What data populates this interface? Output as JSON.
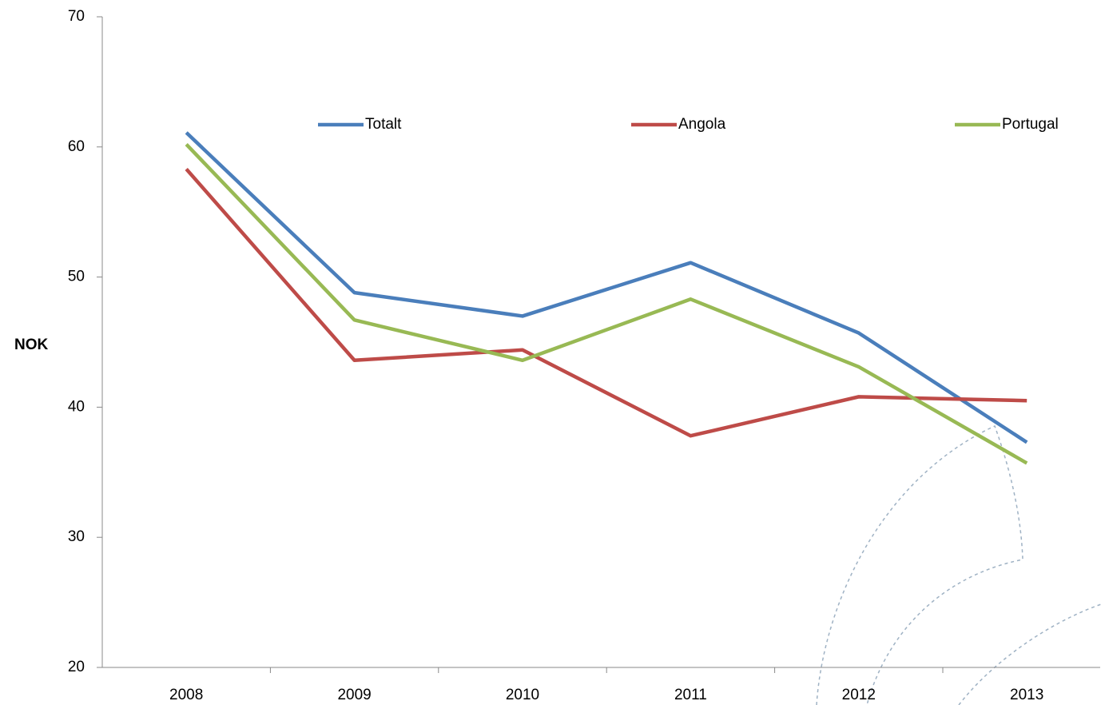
{
  "chart_data": {
    "type": "line",
    "y_label": "NOK",
    "categories": [
      "2008",
      "2009",
      "2010",
      "2011",
      "2012",
      "2013"
    ],
    "series": [
      {
        "name": "Totalt",
        "color": "#4a7ebb",
        "values": [
          61.1,
          48.8,
          47.0,
          51.1,
          45.7,
          37.3
        ]
      },
      {
        "name": "Angola",
        "color": "#be4b48",
        "values": [
          58.3,
          43.6,
          44.4,
          37.8,
          40.8,
          40.5
        ]
      },
      {
        "name": "Portugal",
        "color": "#98b954",
        "values": [
          60.2,
          46.7,
          43.6,
          48.3,
          43.1,
          35.7
        ]
      }
    ],
    "ylim": [
      20,
      70
    ],
    "yticks": [
      20,
      30,
      40,
      50,
      60,
      70
    ],
    "legend": "top"
  }
}
